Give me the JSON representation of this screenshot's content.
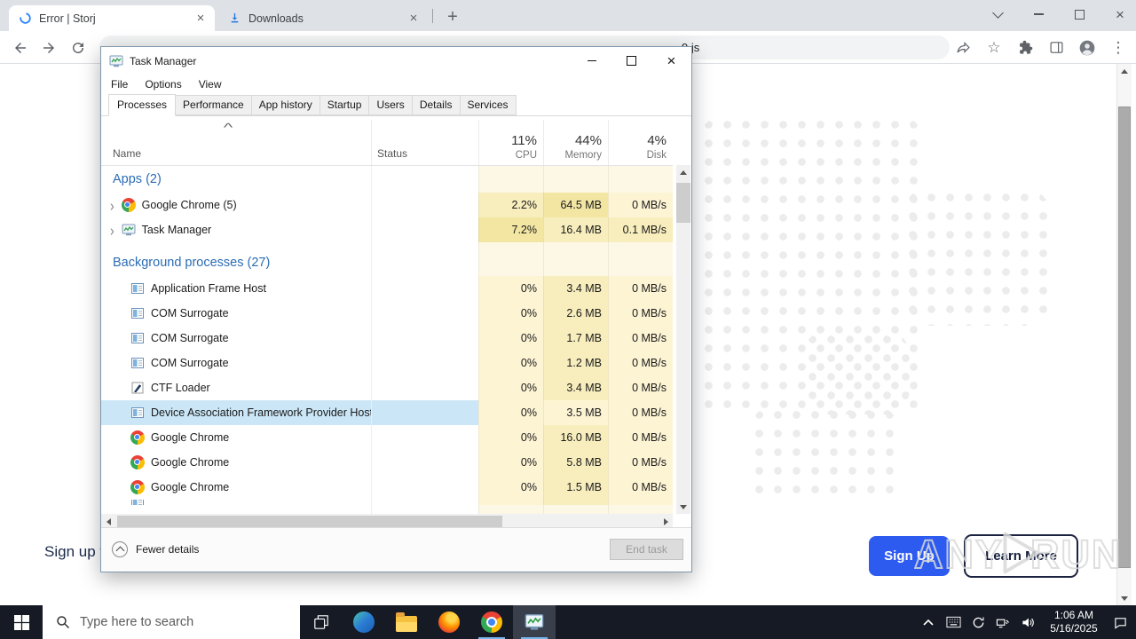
{
  "browser": {
    "tabs": [
      {
        "title": "Error | Storj"
      },
      {
        "title": "Downloads"
      }
    ],
    "url_visible_tail": "9.js",
    "new_tab_label": "+",
    "action_icons": [
      "share-icon",
      "bookmark-star-icon",
      "extensions-icon",
      "side-panel-icon",
      "profile-icon",
      "menu-icon"
    ]
  },
  "page": {
    "signup_text_fragment": "Sign up f",
    "sign_up_label": "Sign Up",
    "learn_more_label": "Learn More",
    "watermark_left": "ANY",
    "watermark_right": "RUN"
  },
  "task_manager": {
    "title": "Task Manager",
    "menu": [
      "File",
      "Options",
      "View"
    ],
    "tabs": [
      {
        "label": "Processes",
        "active": true
      },
      {
        "label": "Performance",
        "active": false
      },
      {
        "label": "App history",
        "active": false
      },
      {
        "label": "Startup",
        "active": false
      },
      {
        "label": "Users",
        "active": false
      },
      {
        "label": "Details",
        "active": false
      },
      {
        "label": "Services",
        "active": false
      }
    ],
    "columns": {
      "sort_indicator": "^",
      "name": "Name",
      "status": "Status",
      "cpu_total": "11%",
      "cpu_label": "CPU",
      "memory_total": "44%",
      "memory_label": "Memory",
      "disk_total": "4%",
      "disk_label": "Disk"
    },
    "rows": [
      {
        "type": "section",
        "label": "Apps (2)",
        "heat": [
          0,
          0,
          0
        ]
      },
      {
        "type": "app",
        "name": "Google Chrome (5)",
        "icon": "chrome",
        "chevron": true,
        "cpu": "2.2%",
        "mem": "64.5 MB",
        "disk": "0 MB/s",
        "heat": [
          2,
          3,
          1
        ]
      },
      {
        "type": "app",
        "name": "Task Manager",
        "icon": "tmicon",
        "chevron": true,
        "cpu": "7.2%",
        "mem": "16.4 MB",
        "disk": "0.1 MB/s",
        "heat": [
          3,
          2,
          2
        ]
      },
      {
        "type": "spacer",
        "heat": [
          0,
          0,
          0
        ]
      },
      {
        "type": "section",
        "label": "Background processes (27)",
        "heat": [
          0,
          0,
          0
        ]
      },
      {
        "type": "process",
        "name": "Application Frame Host",
        "icon": "winproc",
        "cpu": "0%",
        "mem": "3.4 MB",
        "disk": "0 MB/s",
        "heat": [
          1,
          2,
          1
        ]
      },
      {
        "type": "process",
        "name": "COM Surrogate",
        "icon": "winproc",
        "cpu": "0%",
        "mem": "2.6 MB",
        "disk": "0 MB/s",
        "heat": [
          1,
          2,
          1
        ]
      },
      {
        "type": "process",
        "name": "COM Surrogate",
        "icon": "winproc",
        "cpu": "0%",
        "mem": "1.7 MB",
        "disk": "0 MB/s",
        "heat": [
          1,
          2,
          1
        ]
      },
      {
        "type": "process",
        "name": "COM Surrogate",
        "icon": "winproc",
        "cpu": "0%",
        "mem": "1.2 MB",
        "disk": "0 MB/s",
        "heat": [
          1,
          2,
          1
        ]
      },
      {
        "type": "process",
        "name": "CTF Loader",
        "icon": "pen",
        "cpu": "0%",
        "mem": "3.4 MB",
        "disk": "0 MB/s",
        "heat": [
          1,
          2,
          1
        ]
      },
      {
        "type": "process",
        "name": "Device Association Framework Provider Host",
        "icon": "winproc",
        "selected": true,
        "cpu": "0%",
        "mem": "3.5 MB",
        "disk": "0 MB/s",
        "heat": [
          1,
          1,
          1
        ]
      },
      {
        "type": "process",
        "name": "Google Chrome",
        "icon": "chrome",
        "cpu": "0%",
        "mem": "16.0 MB",
        "disk": "0 MB/s",
        "heat": [
          1,
          2,
          1
        ]
      },
      {
        "type": "process",
        "name": "Google Chrome",
        "icon": "chrome",
        "cpu": "0%",
        "mem": "5.8 MB",
        "disk": "0 MB/s",
        "heat": [
          1,
          2,
          1
        ]
      },
      {
        "type": "process",
        "name": "Google Chrome",
        "icon": "chrome",
        "cpu": "0%",
        "mem": "1.5 MB",
        "disk": "0 MB/s",
        "heat": [
          1,
          2,
          1
        ]
      },
      {
        "type": "partial",
        "icon": "winproc",
        "heat": [
          1,
          2,
          1
        ]
      },
      {
        "type": "filler",
        "heat": [
          0,
          0,
          0
        ]
      }
    ],
    "footer": {
      "fewer_details": "Fewer details",
      "end_task": "End task"
    }
  },
  "taskbar": {
    "search_placeholder": "Type here to search",
    "time": "1:06 AM",
    "date": "5/16/2025",
    "app_icons": [
      "start-icon",
      "task-view-icon",
      "edge-icon",
      "file-explorer-icon",
      "firefox-icon",
      "chrome-icon",
      "task-manager-icon"
    ],
    "tray_icons": [
      "chevron-up-icon",
      "touch-keyboard-icon",
      "sync-icon",
      "network-icon",
      "volume-icon",
      "action-center-icon"
    ]
  },
  "colors": {
    "accent_blue": "#2d5bf0",
    "group_header_blue": "#2b6cb5",
    "selection_blue": "#cbe7f7",
    "taskbar_bg": "#151a24",
    "taskbar_underline": "#76b9ed",
    "heat_levels": [
      "#fcf8e5",
      "#fdf4d4",
      "#f8eebd",
      "#f3e6a3"
    ]
  }
}
